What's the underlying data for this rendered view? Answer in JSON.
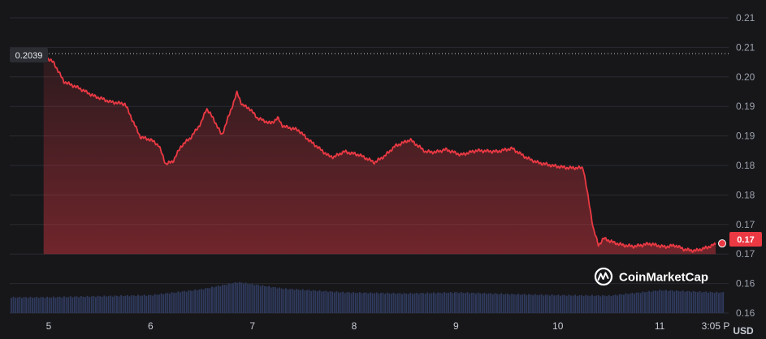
{
  "chart_data": {
    "type": "area",
    "y_ticks": [
      "0.21",
      "0.21",
      "0.20",
      "0.19",
      "0.19",
      "0.18",
      "0.18",
      "0.17",
      "0.17",
      "0.16",
      "0.16"
    ],
    "x_ticks": [
      {
        "label": "5",
        "x": 5
      },
      {
        "label": "6",
        "x": 6
      },
      {
        "label": "7",
        "x": 7
      },
      {
        "label": "8",
        "x": 8
      },
      {
        "label": "9",
        "x": 9
      },
      {
        "label": "10",
        "x": 10
      },
      {
        "label": "11",
        "x": 11
      },
      {
        "label": "3:05 P",
        "x": 11.55
      }
    ],
    "unit": "USD",
    "reference": {
      "label": "0.2039",
      "value": 0.2039
    },
    "current": {
      "label": "0.17",
      "value": 0.1667
    },
    "ylim": [
      0.156,
      0.2105
    ],
    "price_series": {
      "x": [
        4.95,
        5.05,
        5.15,
        5.3,
        5.45,
        5.52,
        5.6,
        5.75,
        5.85,
        5.9,
        6.0,
        6.08,
        6.15,
        6.22,
        6.3,
        6.4,
        6.5,
        6.55,
        6.62,
        6.7,
        6.78,
        6.85,
        6.9,
        6.97,
        7.05,
        7.18,
        7.25,
        7.3,
        7.45,
        7.55,
        7.65,
        7.75,
        7.8,
        7.9,
        8.05,
        8.2,
        8.3,
        8.4,
        8.55,
        8.7,
        8.8,
        8.9,
        9.05,
        9.2,
        9.4,
        9.55,
        9.7,
        9.8,
        9.95,
        10.1,
        10.25,
        10.35,
        10.4,
        10.45,
        10.55,
        10.65,
        10.75,
        10.9,
        11.05,
        11.15,
        11.25,
        11.35,
        11.45,
        11.55
      ],
      "y": [
        0.2036,
        0.2022,
        0.1987,
        0.1975,
        0.196,
        0.1956,
        0.195,
        0.1946,
        0.1905,
        0.1885,
        0.188,
        0.187,
        0.1835,
        0.184,
        0.1868,
        0.1885,
        0.1912,
        0.1938,
        0.1918,
        0.1888,
        0.193,
        0.1967,
        0.1944,
        0.1938,
        0.192,
        0.191,
        0.192,
        0.1905,
        0.1898,
        0.188,
        0.1865,
        0.185,
        0.1848,
        0.1858,
        0.1852,
        0.1838,
        0.185,
        0.1868,
        0.188,
        0.1858,
        0.1857,
        0.1862,
        0.1852,
        0.186,
        0.1858,
        0.1864,
        0.1846,
        0.1838,
        0.1832,
        0.1828,
        0.1828,
        0.1715,
        0.1685,
        0.1698,
        0.169,
        0.1685,
        0.1683,
        0.1688,
        0.1682,
        0.1685,
        0.1677,
        0.1675,
        0.168,
        0.1687
      ]
    },
    "volume_series": {
      "x": [
        4.95,
        5.5,
        6.0,
        6.5,
        6.85,
        7.3,
        7.9,
        8.5,
        9.0,
        9.5,
        10.0,
        10.5,
        11.0,
        11.55
      ],
      "y": [
        0.1589,
        0.1591,
        0.1593,
        0.1604,
        0.1617,
        0.1605,
        0.1598,
        0.1596,
        0.1598,
        0.1595,
        0.1593,
        0.1592,
        0.1602,
        0.1598
      ]
    },
    "grid": true,
    "brand": "CoinMarketCap",
    "colors": {
      "background": "#17171a",
      "line": "#ea3943",
      "volume": "#2f3a5c",
      "grid": "#2a2b31"
    }
  }
}
